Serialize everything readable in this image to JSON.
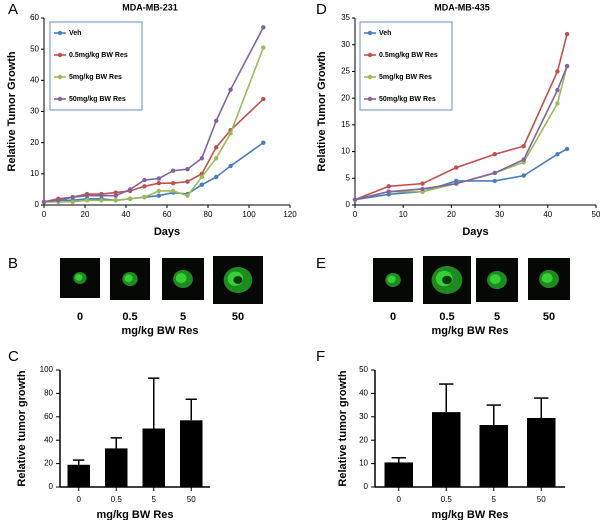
{
  "chart_data": [
    {
      "type": "line",
      "title": "MDA-MB-231",
      "xlabel": "Days",
      "ylabel": "Relative Tumor Growth",
      "x": [
        0,
        7,
        14,
        21,
        28,
        35,
        42,
        49,
        56,
        63,
        70,
        77,
        84,
        91,
        107
      ],
      "series": [
        {
          "name": "Veh",
          "color": "#4a7ebb",
          "values": [
            1,
            1.5,
            1.5,
            2,
            2,
            1.5,
            2,
            2.5,
            3,
            4,
            3.5,
            6.5,
            9,
            12.5,
            20
          ]
        },
        {
          "name": "0.5mg/kg BW Res",
          "color": "#c0504d",
          "values": [
            1,
            2,
            2.5,
            3.5,
            3.5,
            4,
            4.5,
            6,
            7,
            7,
            7.5,
            10,
            18.5,
            24,
            34
          ]
        },
        {
          "name": "5mg/kg BW Res",
          "color": "#9bbb59",
          "values": [
            1,
            1,
            1,
            1.5,
            1.5,
            1.5,
            2,
            2.5,
            4.5,
            4.5,
            3,
            9,
            15,
            23,
            50.5
          ]
        },
        {
          "name": "50mg/kg BW Res",
          "color": "#8064a2",
          "values": [
            1,
            1.5,
            2.5,
            3,
            3,
            3,
            5,
            8,
            8.5,
            11,
            11.5,
            15,
            27,
            37,
            57
          ]
        }
      ],
      "xlim": [
        0,
        120
      ],
      "xticks": [
        0,
        20,
        40,
        60,
        80,
        100,
        120
      ],
      "ylim": [
        0,
        60
      ],
      "yticks": [
        0,
        10,
        20,
        30,
        40,
        50,
        60
      ],
      "legend": "upper left",
      "grid": false
    },
    {
      "type": "line",
      "title": "MDA-MB-435",
      "xlabel": "Days",
      "ylabel": "Relative Tumor Growth",
      "x": [
        0,
        7,
        14,
        21,
        29,
        35,
        42,
        44
      ],
      "series": [
        {
          "name": "Veh",
          "color": "#4a7ebb",
          "values": [
            1,
            2,
            2.5,
            4.5,
            4.5,
            5.5,
            9.5,
            10.5
          ]
        },
        {
          "name": "0.5mg/kg BW Res",
          "color": "#c0504d",
          "values": [
            1,
            3.5,
            4,
            7,
            9.5,
            11,
            25,
            32
          ]
        },
        {
          "name": "5mg/kg BW Res",
          "color": "#9bbb59",
          "values": [
            1,
            2.5,
            2.5,
            4,
            6,
            8,
            19,
            26
          ]
        },
        {
          "name": "50mg/kg BW Res",
          "color": "#8064a2",
          "values": [
            1,
            2.5,
            3,
            4,
            6,
            8.5,
            21.5,
            26
          ]
        }
      ],
      "xlim": [
        0,
        50
      ],
      "xticks": [
        0,
        10,
        20,
        30,
        40,
        50
      ],
      "ylim": [
        0,
        35
      ],
      "yticks": [
        0,
        5,
        10,
        15,
        20,
        25,
        30,
        35
      ],
      "legend": "upper left",
      "grid": false
    },
    {
      "type": "bar",
      "xlabel": "mg/kg BW Res",
      "ylabel": "Relative tumor growth",
      "categories": [
        "0",
        "0.5",
        "5",
        "50"
      ],
      "values": [
        19,
        33,
        50,
        57
      ],
      "errors": [
        4,
        9,
        43,
        18
      ],
      "color": "#000000",
      "ylim": [
        0,
        100
      ],
      "yticks": [
        0,
        20,
        40,
        60,
        80,
        100
      ],
      "grid": false
    },
    {
      "type": "bar",
      "xlabel": "mg/kg BW Res",
      "ylabel": "Relative tumor growth",
      "categories": [
        "0",
        "0.5",
        "5",
        "50"
      ],
      "values": [
        10.5,
        32,
        26.5,
        29.5
      ],
      "errors": [
        2,
        12,
        8.5,
        8.5
      ],
      "color": "#000000",
      "ylim": [
        0,
        50
      ],
      "yticks": [
        0,
        10,
        20,
        30,
        40,
        50
      ],
      "grid": false
    }
  ],
  "panel_labels": [
    "A",
    "D",
    "C",
    "F",
    "B",
    "E"
  ],
  "image_panels": [
    {
      "doses": [
        "0",
        "0.5",
        "5",
        "50"
      ],
      "caption": "mg/kg BW Res"
    },
    {
      "doses": [
        "0",
        "0.5",
        "5",
        "50"
      ],
      "caption": "mg/kg BW Res"
    }
  ]
}
